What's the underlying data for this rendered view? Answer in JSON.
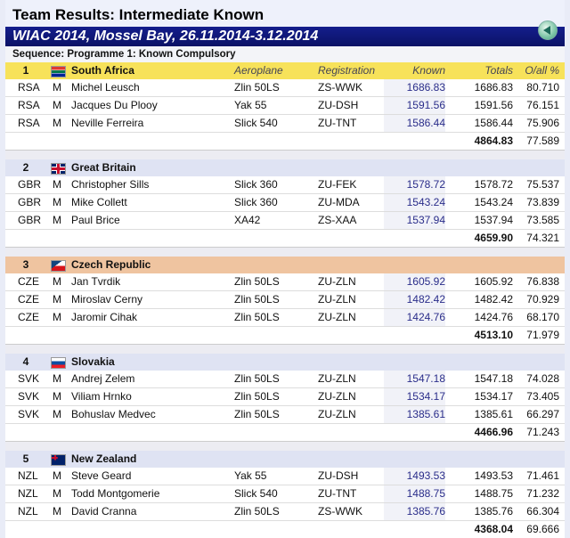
{
  "title": "Team Results: Intermediate Known",
  "event": "WIAC 2014, Mossel Bay, 26.11.2014-3.12.2014",
  "sequence": "Sequence: Programme 1: Known Compulsory",
  "columns": {
    "aeroplane": "Aeroplane",
    "registration": "Registration",
    "known": "Known",
    "totals": "Totals",
    "overall": "O/all %"
  },
  "teams": [
    {
      "rank": "1",
      "name": "South Africa",
      "flag": "za-flag-icon",
      "style": "gold",
      "pilots": [
        {
          "nat": "RSA",
          "sex": "M",
          "name": "Michel Leusch",
          "plane": "Zlin 50LS",
          "reg": "ZS-WWK",
          "known": "1686.83",
          "total": "1686.83",
          "pct": "80.710"
        },
        {
          "nat": "RSA",
          "sex": "M",
          "name": "Jacques Du Plooy",
          "plane": "Yak 55",
          "reg": "ZU-DSH",
          "known": "1591.56",
          "total": "1591.56",
          "pct": "76.151"
        },
        {
          "nat": "RSA",
          "sex": "M",
          "name": "Neville Ferreira",
          "plane": "Slick 540",
          "reg": "ZU-TNT",
          "known": "1586.44",
          "total": "1586.44",
          "pct": "75.906"
        }
      ],
      "team_total": "4864.83",
      "team_pct": "77.589"
    },
    {
      "rank": "2",
      "name": "Great Britain",
      "flag": "gb-flag-icon",
      "style": "plain",
      "pilots": [
        {
          "nat": "GBR",
          "sex": "M",
          "name": "Christopher Sills",
          "plane": "Slick 360",
          "reg": "ZU-FEK",
          "known": "1578.72",
          "total": "1578.72",
          "pct": "75.537"
        },
        {
          "nat": "GBR",
          "sex": "M",
          "name": "Mike Collett",
          "plane": "Slick 360",
          "reg": "ZU-MDA",
          "known": "1543.24",
          "total": "1543.24",
          "pct": "73.839"
        },
        {
          "nat": "GBR",
          "sex": "M",
          "name": "Paul Brice",
          "plane": "XA42",
          "reg": "ZS-XAA",
          "known": "1537.94",
          "total": "1537.94",
          "pct": "73.585"
        }
      ],
      "team_total": "4659.90",
      "team_pct": "74.321"
    },
    {
      "rank": "3",
      "name": "Czech Republic",
      "flag": "cz-flag-icon",
      "style": "peach",
      "pilots": [
        {
          "nat": "CZE",
          "sex": "M",
          "name": "Jan Tvrdik",
          "plane": "Zlin 50LS",
          "reg": "ZU-ZLN",
          "known": "1605.92",
          "total": "1605.92",
          "pct": "76.838"
        },
        {
          "nat": "CZE",
          "sex": "M",
          "name": "Miroslav Cerny",
          "plane": "Zlin 50LS",
          "reg": "ZU-ZLN",
          "known": "1482.42",
          "total": "1482.42",
          "pct": "70.929"
        },
        {
          "nat": "CZE",
          "sex": "M",
          "name": "Jaromir Cihak",
          "plane": "Zlin 50LS",
          "reg": "ZU-ZLN",
          "known": "1424.76",
          "total": "1424.76",
          "pct": "68.170"
        }
      ],
      "team_total": "4513.10",
      "team_pct": "71.979"
    },
    {
      "rank": "4",
      "name": "Slovakia",
      "flag": "sk-flag-icon",
      "style": "plain",
      "pilots": [
        {
          "nat": "SVK",
          "sex": "M",
          "name": "Andrej Zelem",
          "plane": "Zlin 50LS",
          "reg": "ZU-ZLN",
          "known": "1547.18",
          "total": "1547.18",
          "pct": "74.028"
        },
        {
          "nat": "SVK",
          "sex": "M",
          "name": "Viliam Hrnko",
          "plane": "Zlin 50LS",
          "reg": "ZU-ZLN",
          "known": "1534.17",
          "total": "1534.17",
          "pct": "73.405"
        },
        {
          "nat": "SVK",
          "sex": "M",
          "name": "Bohuslav Medvec",
          "plane": "Zlin 50LS",
          "reg": "ZU-ZLN",
          "known": "1385.61",
          "total": "1385.61",
          "pct": "66.297"
        }
      ],
      "team_total": "4466.96",
      "team_pct": "71.243"
    },
    {
      "rank": "5",
      "name": "New Zealand",
      "flag": "nz-flag-icon",
      "style": "plain",
      "pilots": [
        {
          "nat": "NZL",
          "sex": "M",
          "name": "Steve Geard",
          "plane": "Yak 55",
          "reg": "ZU-DSH",
          "known": "1493.53",
          "total": "1493.53",
          "pct": "71.461"
        },
        {
          "nat": "NZL",
          "sex": "M",
          "name": "Todd Montgomerie",
          "plane": "Slick 540",
          "reg": "ZU-TNT",
          "known": "1488.75",
          "total": "1488.75",
          "pct": "71.232"
        },
        {
          "nat": "NZL",
          "sex": "M",
          "name": "David Cranna",
          "plane": "Zlin 50LS",
          "reg": "ZS-WWK",
          "known": "1385.76",
          "total": "1385.76",
          "pct": "66.304"
        }
      ],
      "team_total": "4368.04",
      "team_pct": "69.666"
    }
  ]
}
